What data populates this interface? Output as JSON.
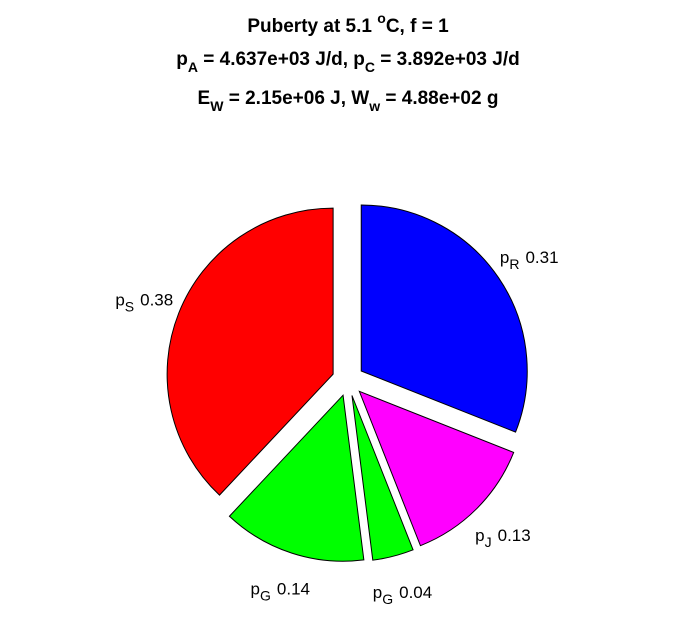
{
  "chart_data": {
    "type": "pie",
    "title": [
      [
        "Puberty at 5.1 ",
        "o",
        "C, f = 1"
      ],
      [
        "p",
        "A",
        " = 4.637e+03 J/d,  p",
        "C",
        " = 3.892e+03 J/d"
      ],
      [
        "E",
        "W",
        " = 2.15e+06 J, W",
        "w",
        " = 4.88e+02 g"
      ]
    ],
    "labels": [
      [
        "p",
        "R"
      ],
      [
        "p",
        "J"
      ],
      [
        "p",
        "G"
      ],
      [
        "p",
        "G"
      ],
      [
        "p",
        "S"
      ]
    ],
    "values": [
      0.31,
      0.13,
      0.04,
      0.14,
      0.38
    ],
    "colors": [
      "#0000ff",
      "#ff00ff",
      "#00ff00",
      "#00ff00",
      "#ff0000"
    ],
    "exploded": true
  }
}
